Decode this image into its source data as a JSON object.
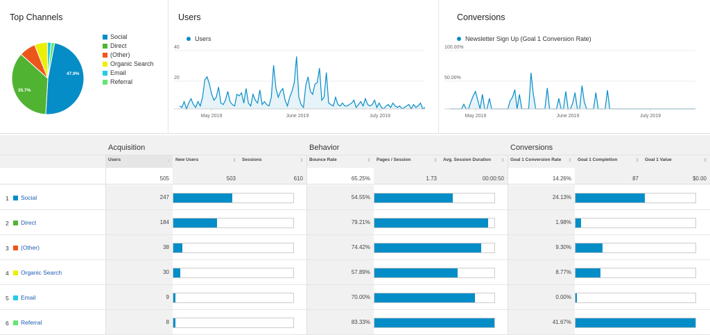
{
  "panels": {
    "channels_title": "Top Channels",
    "users_title": "Users",
    "conversions_title": "Conversions"
  },
  "legend": [
    {
      "label": "Social",
      "color": "#058dc7"
    },
    {
      "label": "Direct",
      "color": "#50b432"
    },
    {
      "label": "(Other)",
      "color": "#ed561b"
    },
    {
      "label": "Organic Search",
      "color": "#edef00"
    },
    {
      "label": "Email",
      "color": "#24cbe5"
    },
    {
      "label": "Referral",
      "color": "#64e572"
    }
  ],
  "pie_labels": {
    "social": "47.9%",
    "direct": "35.7%"
  },
  "users_chart": {
    "series_label": "Users",
    "y_ticks": [
      "40",
      "20"
    ],
    "x_ticks": [
      "May 2019",
      "June 2019",
      "July 2019"
    ]
  },
  "conv_chart": {
    "series_label": "Newsletter Sign Up (Goal 1 Conversion Rate)",
    "y_ticks": [
      "100.00%",
      "50.00%"
    ],
    "x_ticks": [
      "May 2019",
      "June 2019",
      "July 2019"
    ]
  },
  "chart_data": [
    {
      "type": "pie",
      "categories": [
        "Social",
        "Direct",
        "(Other)",
        "Organic Search",
        "Email",
        "Referral"
      ],
      "values": [
        47.9,
        35.7,
        7.4,
        5.8,
        1.7,
        1.5
      ],
      "title": "Top Channels"
    },
    {
      "type": "area",
      "title": "Users",
      "ylim": [
        0,
        40
      ],
      "x_ticks": [
        "May 2019",
        "June 2019",
        "July 2019"
      ],
      "values": [
        2,
        1,
        5,
        0,
        4,
        7,
        3,
        1,
        5,
        2,
        8,
        20,
        22,
        17,
        10,
        6,
        8,
        15,
        4,
        3,
        6,
        12,
        5,
        3,
        2,
        10,
        9,
        11,
        4,
        14,
        4,
        2,
        10,
        6,
        4,
        13,
        3,
        5,
        3,
        2,
        8,
        30,
        14,
        8,
        12,
        14,
        6,
        2,
        8,
        12,
        18,
        36,
        8,
        3,
        1,
        16,
        22,
        12,
        10,
        17,
        18,
        28,
        6,
        8,
        25,
        4,
        3,
        2,
        8,
        3,
        2,
        4,
        2,
        2,
        3,
        4,
        6,
        1,
        3,
        5,
        2,
        7,
        3,
        2,
        3,
        6,
        1,
        4,
        1,
        0,
        2,
        3,
        1,
        4,
        2,
        1,
        2,
        0,
        1,
        2,
        3,
        0,
        3,
        1,
        2,
        4,
        0,
        1
      ]
    },
    {
      "type": "area",
      "title": "Newsletter Sign Up (Goal 1 Conversion Rate)",
      "ylim": [
        0,
        100
      ],
      "x_ticks": [
        "May 2019",
        "June 2019",
        "July 2019"
      ],
      "values": [
        0,
        0,
        0,
        0,
        0,
        0,
        8,
        0,
        0,
        12,
        22,
        30,
        15,
        0,
        25,
        0,
        0,
        18,
        0,
        0,
        0,
        0,
        0,
        0,
        0,
        0,
        14,
        20,
        33,
        0,
        25,
        0,
        0,
        0,
        0,
        62,
        25,
        0,
        0,
        0,
        0,
        0,
        36,
        0,
        0,
        0,
        0,
        18,
        0,
        0,
        30,
        0,
        0,
        10,
        28,
        0,
        0,
        40,
        12,
        0,
        0,
        0,
        0,
        28,
        0,
        0,
        0,
        0,
        32,
        0,
        0,
        0,
        0,
        0,
        0,
        0,
        0,
        0,
        0,
        0,
        0,
        0,
        0,
        0,
        0,
        0,
        0,
        0,
        0,
        0,
        0,
        0,
        0,
        0,
        0,
        0,
        0,
        0,
        0,
        0,
        0,
        0,
        0,
        0,
        0,
        0,
        0
      ]
    }
  ],
  "table": {
    "groups": [
      "Acquisition",
      "Behavior",
      "Conversions"
    ],
    "headers": [
      "Users",
      "New Users",
      "Sessions",
      "Bounce Rate",
      "Pages / Session",
      "Avg. Session Duration",
      "Goal 1 Conversion Rate",
      "Goal 1 Completion",
      "Goal 1 Value"
    ],
    "totals": [
      "505",
      "503",
      "610",
      "65.25%",
      "1.73",
      "00:00:50",
      "14.26%",
      "87",
      "$0.00"
    ],
    "rows": [
      {
        "idx": "1",
        "name": "Social",
        "color": "#058dc7",
        "users": "247",
        "users_frac": 0.49,
        "bounce": "54.55%",
        "bounce_frac": 0.6545,
        "conv": "24.13%",
        "conv_frac": 0.579
      },
      {
        "idx": "2",
        "name": "Direct",
        "color": "#50b432",
        "users": "184",
        "users_frac": 0.364,
        "bounce": "79.21%",
        "bounce_frac": 0.95,
        "conv": "1.98%",
        "conv_frac": 0.048
      },
      {
        "idx": "3",
        "name": "(Other)",
        "color": "#ed561b",
        "users": "38",
        "users_frac": 0.075,
        "bounce": "74.42%",
        "bounce_frac": 0.893,
        "conv": "9.30%",
        "conv_frac": 0.223
      },
      {
        "idx": "4",
        "name": "Organic Search",
        "color": "#edef00",
        "users": "30",
        "users_frac": 0.059,
        "bounce": "57.89%",
        "bounce_frac": 0.695,
        "conv": "8.77%",
        "conv_frac": 0.21
      },
      {
        "idx": "5",
        "name": "Email",
        "color": "#24cbe5",
        "users": "9",
        "users_frac": 0.018,
        "bounce": "70.00%",
        "bounce_frac": 0.84,
        "conv": "0.00%",
        "conv_frac": 0
      },
      {
        "idx": "6",
        "name": "Referral",
        "color": "#64e572",
        "users": "8",
        "users_frac": 0.016,
        "bounce": "83.33%",
        "bounce_frac": 1.0,
        "conv": "41.67%",
        "conv_frac": 1.0
      }
    ]
  }
}
